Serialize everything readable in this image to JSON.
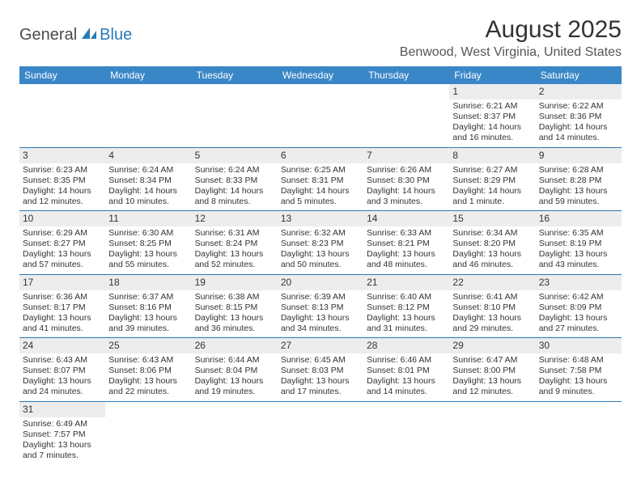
{
  "logo": {
    "text1": "General",
    "text2": "Blue",
    "icon_color": "#2a7ab8"
  },
  "title": "August 2025",
  "location": "Benwood, West Virginia, United States",
  "colors": {
    "header_bg": "#3a87c7",
    "header_text": "#ffffff",
    "row_divider": "#2a7ab8",
    "daynum_bg": "#ededed",
    "text": "#333333"
  },
  "typography": {
    "title_fontsize": 30,
    "location_fontsize": 16,
    "th_fontsize": 12,
    "cell_fontsize": 10.5,
    "daynum_fontsize": 12
  },
  "weekdays": [
    "Sunday",
    "Monday",
    "Tuesday",
    "Wednesday",
    "Thursday",
    "Friday",
    "Saturday"
  ],
  "weeks": [
    [
      null,
      null,
      null,
      null,
      null,
      {
        "n": "1",
        "sr": "Sunrise: 6:21 AM",
        "ss": "Sunset: 8:37 PM",
        "dl": "Daylight: 14 hours and 16 minutes."
      },
      {
        "n": "2",
        "sr": "Sunrise: 6:22 AM",
        "ss": "Sunset: 8:36 PM",
        "dl": "Daylight: 14 hours and 14 minutes."
      }
    ],
    [
      {
        "n": "3",
        "sr": "Sunrise: 6:23 AM",
        "ss": "Sunset: 8:35 PM",
        "dl": "Daylight: 14 hours and 12 minutes."
      },
      {
        "n": "4",
        "sr": "Sunrise: 6:24 AM",
        "ss": "Sunset: 8:34 PM",
        "dl": "Daylight: 14 hours and 10 minutes."
      },
      {
        "n": "5",
        "sr": "Sunrise: 6:24 AM",
        "ss": "Sunset: 8:33 PM",
        "dl": "Daylight: 14 hours and 8 minutes."
      },
      {
        "n": "6",
        "sr": "Sunrise: 6:25 AM",
        "ss": "Sunset: 8:31 PM",
        "dl": "Daylight: 14 hours and 5 minutes."
      },
      {
        "n": "7",
        "sr": "Sunrise: 6:26 AM",
        "ss": "Sunset: 8:30 PM",
        "dl": "Daylight: 14 hours and 3 minutes."
      },
      {
        "n": "8",
        "sr": "Sunrise: 6:27 AM",
        "ss": "Sunset: 8:29 PM",
        "dl": "Daylight: 14 hours and 1 minute."
      },
      {
        "n": "9",
        "sr": "Sunrise: 6:28 AM",
        "ss": "Sunset: 8:28 PM",
        "dl": "Daylight: 13 hours and 59 minutes."
      }
    ],
    [
      {
        "n": "10",
        "sr": "Sunrise: 6:29 AM",
        "ss": "Sunset: 8:27 PM",
        "dl": "Daylight: 13 hours and 57 minutes."
      },
      {
        "n": "11",
        "sr": "Sunrise: 6:30 AM",
        "ss": "Sunset: 8:25 PM",
        "dl": "Daylight: 13 hours and 55 minutes."
      },
      {
        "n": "12",
        "sr": "Sunrise: 6:31 AM",
        "ss": "Sunset: 8:24 PM",
        "dl": "Daylight: 13 hours and 52 minutes."
      },
      {
        "n": "13",
        "sr": "Sunrise: 6:32 AM",
        "ss": "Sunset: 8:23 PM",
        "dl": "Daylight: 13 hours and 50 minutes."
      },
      {
        "n": "14",
        "sr": "Sunrise: 6:33 AM",
        "ss": "Sunset: 8:21 PM",
        "dl": "Daylight: 13 hours and 48 minutes."
      },
      {
        "n": "15",
        "sr": "Sunrise: 6:34 AM",
        "ss": "Sunset: 8:20 PM",
        "dl": "Daylight: 13 hours and 46 minutes."
      },
      {
        "n": "16",
        "sr": "Sunrise: 6:35 AM",
        "ss": "Sunset: 8:19 PM",
        "dl": "Daylight: 13 hours and 43 minutes."
      }
    ],
    [
      {
        "n": "17",
        "sr": "Sunrise: 6:36 AM",
        "ss": "Sunset: 8:17 PM",
        "dl": "Daylight: 13 hours and 41 minutes."
      },
      {
        "n": "18",
        "sr": "Sunrise: 6:37 AM",
        "ss": "Sunset: 8:16 PM",
        "dl": "Daylight: 13 hours and 39 minutes."
      },
      {
        "n": "19",
        "sr": "Sunrise: 6:38 AM",
        "ss": "Sunset: 8:15 PM",
        "dl": "Daylight: 13 hours and 36 minutes."
      },
      {
        "n": "20",
        "sr": "Sunrise: 6:39 AM",
        "ss": "Sunset: 8:13 PM",
        "dl": "Daylight: 13 hours and 34 minutes."
      },
      {
        "n": "21",
        "sr": "Sunrise: 6:40 AM",
        "ss": "Sunset: 8:12 PM",
        "dl": "Daylight: 13 hours and 31 minutes."
      },
      {
        "n": "22",
        "sr": "Sunrise: 6:41 AM",
        "ss": "Sunset: 8:10 PM",
        "dl": "Daylight: 13 hours and 29 minutes."
      },
      {
        "n": "23",
        "sr": "Sunrise: 6:42 AM",
        "ss": "Sunset: 8:09 PM",
        "dl": "Daylight: 13 hours and 27 minutes."
      }
    ],
    [
      {
        "n": "24",
        "sr": "Sunrise: 6:43 AM",
        "ss": "Sunset: 8:07 PM",
        "dl": "Daylight: 13 hours and 24 minutes."
      },
      {
        "n": "25",
        "sr": "Sunrise: 6:43 AM",
        "ss": "Sunset: 8:06 PM",
        "dl": "Daylight: 13 hours and 22 minutes."
      },
      {
        "n": "26",
        "sr": "Sunrise: 6:44 AM",
        "ss": "Sunset: 8:04 PM",
        "dl": "Daylight: 13 hours and 19 minutes."
      },
      {
        "n": "27",
        "sr": "Sunrise: 6:45 AM",
        "ss": "Sunset: 8:03 PM",
        "dl": "Daylight: 13 hours and 17 minutes."
      },
      {
        "n": "28",
        "sr": "Sunrise: 6:46 AM",
        "ss": "Sunset: 8:01 PM",
        "dl": "Daylight: 13 hours and 14 minutes."
      },
      {
        "n": "29",
        "sr": "Sunrise: 6:47 AM",
        "ss": "Sunset: 8:00 PM",
        "dl": "Daylight: 13 hours and 12 minutes."
      },
      {
        "n": "30",
        "sr": "Sunrise: 6:48 AM",
        "ss": "Sunset: 7:58 PM",
        "dl": "Daylight: 13 hours and 9 minutes."
      }
    ],
    [
      {
        "n": "31",
        "sr": "Sunrise: 6:49 AM",
        "ss": "Sunset: 7:57 PM",
        "dl": "Daylight: 13 hours and 7 minutes."
      },
      null,
      null,
      null,
      null,
      null,
      null
    ]
  ]
}
